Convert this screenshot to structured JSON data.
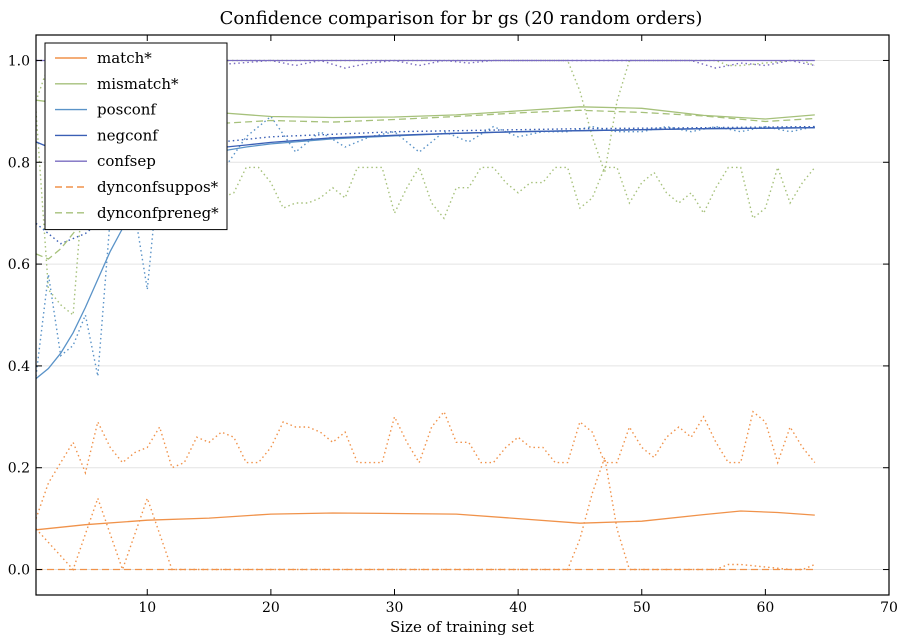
{
  "chart_data": {
    "type": "line",
    "title": "Confidence comparison for br gs (20 random orders)",
    "xlabel": "Size of training set",
    "ylabel": "",
    "xlim": [
      1,
      70
    ],
    "ylim": [
      -0.05,
      1.05
    ],
    "xticks": [
      10,
      20,
      30,
      40,
      50,
      60,
      70
    ],
    "yticks": [
      0.0,
      0.2,
      0.4,
      0.6,
      0.8,
      1.0
    ],
    "ytick_labels": [
      "0.0",
      "0.2",
      "0.4",
      "0.6",
      "0.8",
      "1.0"
    ],
    "xtick_labels": [
      "10",
      "20",
      "30",
      "40",
      "50",
      "60",
      "70"
    ],
    "grid": "horizontal",
    "legend_position": "top-left",
    "legend": [
      {
        "label": "match*",
        "color": "#f0924a",
        "dash": "solid"
      },
      {
        "label": "mismatch*",
        "color": "#a6c17b",
        "dash": "solid"
      },
      {
        "label": "posconf",
        "color": "#5a93c8",
        "dash": "solid"
      },
      {
        "label": "negconf",
        "color": "#3a5fb5",
        "dash": "solid"
      },
      {
        "label": "confsep",
        "color": "#7a6cc0",
        "dash": "solid"
      },
      {
        "label": "dynconfsuppos*",
        "color": "#f0924a",
        "dash": "dashed"
      },
      {
        "label": "dynconfpreneg*",
        "color": "#a6c17b",
        "dash": "dashed"
      }
    ],
    "series": [
      {
        "name": "match*",
        "color": "#f0924a",
        "dash": "solid",
        "x": [
          1,
          5,
          10,
          15,
          20,
          25,
          30,
          35,
          40,
          45,
          50,
          55,
          58,
          61,
          64
        ],
        "y": [
          0.078,
          0.088,
          0.097,
          0.101,
          0.109,
          0.111,
          0.11,
          0.109,
          0.1,
          0.091,
          0.095,
          0.108,
          0.115,
          0.112,
          0.107
        ]
      },
      {
        "name": "mismatch*",
        "color": "#a6c17b",
        "dash": "solid",
        "x": [
          1,
          5,
          10,
          15,
          20,
          25,
          30,
          35,
          40,
          45,
          50,
          55,
          60,
          64
        ],
        "y": [
          0.922,
          0.91,
          0.902,
          0.899,
          0.89,
          0.888,
          0.889,
          0.893,
          0.901,
          0.909,
          0.906,
          0.892,
          0.885,
          0.893
        ]
      },
      {
        "name": "posconf",
        "color": "#5a93c8",
        "dash": "solid",
        "x": [
          1,
          2,
          3,
          4,
          5,
          6,
          7,
          8,
          9,
          10,
          12,
          14,
          16,
          18,
          20,
          25,
          30,
          35,
          40,
          45,
          50,
          55,
          60,
          64
        ],
        "y": [
          0.375,
          0.395,
          0.425,
          0.465,
          0.515,
          0.57,
          0.625,
          0.67,
          0.715,
          0.75,
          0.79,
          0.812,
          0.822,
          0.83,
          0.836,
          0.846,
          0.852,
          0.857,
          0.86,
          0.862,
          0.864,
          0.866,
          0.867,
          0.868
        ]
      },
      {
        "name": "negconf",
        "color": "#3a5fb5",
        "dash": "solid",
        "x": [
          1,
          3,
          5,
          7,
          9,
          10,
          12,
          14,
          16,
          18,
          20,
          25,
          30,
          35,
          40,
          45,
          50,
          55,
          60,
          64
        ],
        "y": [
          0.84,
          0.82,
          0.815,
          0.812,
          0.81,
          0.812,
          0.818,
          0.824,
          0.829,
          0.834,
          0.839,
          0.848,
          0.853,
          0.857,
          0.86,
          0.862,
          0.864,
          0.866,
          0.867,
          0.868
        ]
      },
      {
        "name": "confsep",
        "color": "#7a6cc0",
        "dash": "solid",
        "x": [
          1,
          64
        ],
        "y": [
          1.0,
          1.0
        ]
      },
      {
        "name": "dynconfsuppos*",
        "color": "#f0924a",
        "dash": "dashed",
        "x": [
          1,
          64
        ],
        "y": [
          0.0,
          0.0
        ]
      },
      {
        "name": "dynconfpreneg*",
        "color": "#a6c17b",
        "dash": "dashed",
        "x": [
          1,
          2,
          3,
          4,
          5,
          6,
          7,
          8,
          10,
          12,
          15,
          20,
          25,
          30,
          35,
          40,
          45,
          50,
          55,
          60,
          64
        ],
        "y": [
          0.62,
          0.61,
          0.63,
          0.66,
          0.69,
          0.72,
          0.75,
          0.78,
          0.82,
          0.85,
          0.875,
          0.882,
          0.879,
          0.884,
          0.89,
          0.897,
          0.902,
          0.898,
          0.891,
          0.88,
          0.886
        ]
      },
      {
        "name": "",
        "color": "#f0924a",
        "dash": "dotted",
        "x": [
          1,
          2,
          3,
          4,
          5,
          6,
          7,
          8,
          9,
          10,
          11,
          12,
          13,
          14,
          15,
          16,
          17,
          18,
          19,
          20,
          21,
          22,
          23,
          24,
          25,
          26,
          27,
          28,
          29,
          30,
          31,
          32,
          33,
          34,
          35,
          36,
          37,
          38,
          39,
          40,
          41,
          42,
          43,
          44,
          45,
          46,
          47,
          48,
          49,
          50,
          51,
          52,
          53,
          54,
          55,
          56,
          57,
          58,
          59,
          60,
          61,
          62,
          63,
          64
        ],
        "y": [
          0.1,
          0.17,
          0.21,
          0.25,
          0.19,
          0.29,
          0.24,
          0.21,
          0.23,
          0.24,
          0.28,
          0.2,
          0.21,
          0.26,
          0.25,
          0.27,
          0.26,
          0.21,
          0.21,
          0.24,
          0.29,
          0.28,
          0.28,
          0.27,
          0.25,
          0.27,
          0.21,
          0.21,
          0.21,
          0.3,
          0.25,
          0.21,
          0.28,
          0.31,
          0.25,
          0.25,
          0.21,
          0.21,
          0.24,
          0.26,
          0.24,
          0.24,
          0.21,
          0.21,
          0.29,
          0.27,
          0.21,
          0.21,
          0.28,
          0.24,
          0.22,
          0.26,
          0.28,
          0.26,
          0.3,
          0.25,
          0.21,
          0.21,
          0.31,
          0.29,
          0.21,
          0.28,
          0.24,
          0.21
        ]
      },
      {
        "name": "",
        "color": "#f0924a",
        "dash": "dotted",
        "x": [
          1,
          4,
          6,
          8,
          10,
          12,
          14,
          44,
          45,
          46,
          47,
          48,
          49,
          50,
          56,
          57,
          58,
          62,
          63,
          64
        ],
        "y": [
          0.08,
          0.0,
          0.14,
          0.0,
          0.14,
          0.0,
          0.0,
          0.0,
          0.06,
          0.15,
          0.22,
          0.08,
          0.0,
          0.0,
          0.0,
          0.01,
          0.01,
          0.0,
          0.0,
          0.01
        ]
      },
      {
        "name": "",
        "color": "#a6c17b",
        "dash": "dotted",
        "x": [
          1,
          2,
          3,
          4,
          5,
          6,
          7,
          8,
          9,
          10,
          11,
          12,
          13,
          14,
          15,
          16,
          17,
          18,
          19,
          20,
          21,
          22,
          23,
          24,
          25,
          26,
          27,
          28,
          29,
          30,
          31,
          32,
          33,
          34,
          35,
          36,
          37,
          38,
          39,
          40,
          41,
          42,
          43,
          44,
          45,
          46,
          47,
          48,
          49,
          50,
          51,
          52,
          53,
          54,
          55,
          56,
          57,
          58,
          59,
          60,
          61,
          62,
          63,
          64
        ],
        "y": [
          0.9,
          0.55,
          0.52,
          0.5,
          0.81,
          0.71,
          0.76,
          0.79,
          0.77,
          0.76,
          0.72,
          0.8,
          0.79,
          0.74,
          0.75,
          0.73,
          0.74,
          0.79,
          0.79,
          0.76,
          0.71,
          0.72,
          0.72,
          0.73,
          0.75,
          0.73,
          0.79,
          0.79,
          0.79,
          0.7,
          0.75,
          0.79,
          0.72,
          0.69,
          0.75,
          0.75,
          0.79,
          0.79,
          0.76,
          0.74,
          0.76,
          0.76,
          0.79,
          0.79,
          0.71,
          0.73,
          0.79,
          0.79,
          0.72,
          0.76,
          0.78,
          0.74,
          0.72,
          0.74,
          0.7,
          0.75,
          0.79,
          0.79,
          0.69,
          0.71,
          0.79,
          0.72,
          0.76,
          0.79
        ]
      },
      {
        "name": "",
        "color": "#a6c17b",
        "dash": "dotted",
        "x": [
          1,
          2,
          3,
          4,
          6,
          8,
          10,
          12,
          14,
          20,
          30,
          40,
          44,
          45,
          46,
          47,
          48,
          49,
          50,
          56,
          57,
          58,
          62,
          63,
          64
        ],
        "y": [
          0.92,
          0.99,
          1.0,
          0.86,
          1.0,
          0.86,
          1.0,
          0.86,
          1.0,
          1.0,
          1.0,
          1.0,
          1.0,
          0.94,
          0.85,
          0.78,
          0.92,
          1.0,
          1.0,
          1.0,
          0.99,
          0.99,
          1.0,
          1.0,
          0.99
        ]
      },
      {
        "name": "",
        "color": "#5a93c8",
        "dash": "dotted",
        "x": [
          1,
          2,
          3,
          4,
          5,
          6,
          7,
          8,
          9,
          10,
          11,
          12,
          14,
          16,
          18,
          20,
          22,
          24,
          26,
          28,
          30,
          32,
          34,
          36,
          38,
          40,
          42,
          44,
          46,
          48,
          50,
          52,
          54,
          56,
          58,
          60,
          62,
          64
        ],
        "y": [
          0.38,
          0.58,
          0.42,
          0.44,
          0.5,
          0.38,
          0.69,
          0.76,
          0.7,
          0.55,
          0.8,
          0.78,
          0.82,
          0.78,
          0.85,
          0.89,
          0.82,
          0.86,
          0.83,
          0.85,
          0.86,
          0.82,
          0.86,
          0.84,
          0.87,
          0.85,
          0.86,
          0.86,
          0.87,
          0.86,
          0.86,
          0.87,
          0.86,
          0.87,
          0.86,
          0.87,
          0.86,
          0.87
        ]
      },
      {
        "name": "",
        "color": "#3a5fb5",
        "dash": "dotted",
        "x": [
          1,
          3,
          5,
          7,
          9,
          10,
          12,
          14,
          16,
          18,
          20,
          25,
          30,
          35,
          40,
          45,
          50,
          55,
          60,
          64
        ],
        "y": [
          0.68,
          0.64,
          0.66,
          0.7,
          0.78,
          0.8,
          0.82,
          0.83,
          0.84,
          0.845,
          0.85,
          0.855,
          0.86,
          0.862,
          0.864,
          0.866,
          0.867,
          0.868,
          0.869,
          0.87
        ]
      },
      {
        "name": "",
        "color": "#7a6cc0",
        "dash": "dotted",
        "x": [
          1,
          5,
          10,
          15,
          20,
          22,
          24,
          26,
          28,
          30,
          32,
          34,
          36,
          38,
          40,
          44,
          48,
          50,
          54,
          56,
          58,
          60,
          62,
          64
        ],
        "y": [
          1.0,
          1.0,
          0.995,
          0.99,
          1.0,
          0.99,
          1.0,
          0.985,
          0.995,
          1.0,
          0.99,
          1.0,
          0.995,
          1.0,
          1.0,
          1.0,
          1.0,
          1.0,
          1.0,
          0.985,
          0.995,
          0.99,
          1.0,
          0.99
        ]
      }
    ]
  }
}
